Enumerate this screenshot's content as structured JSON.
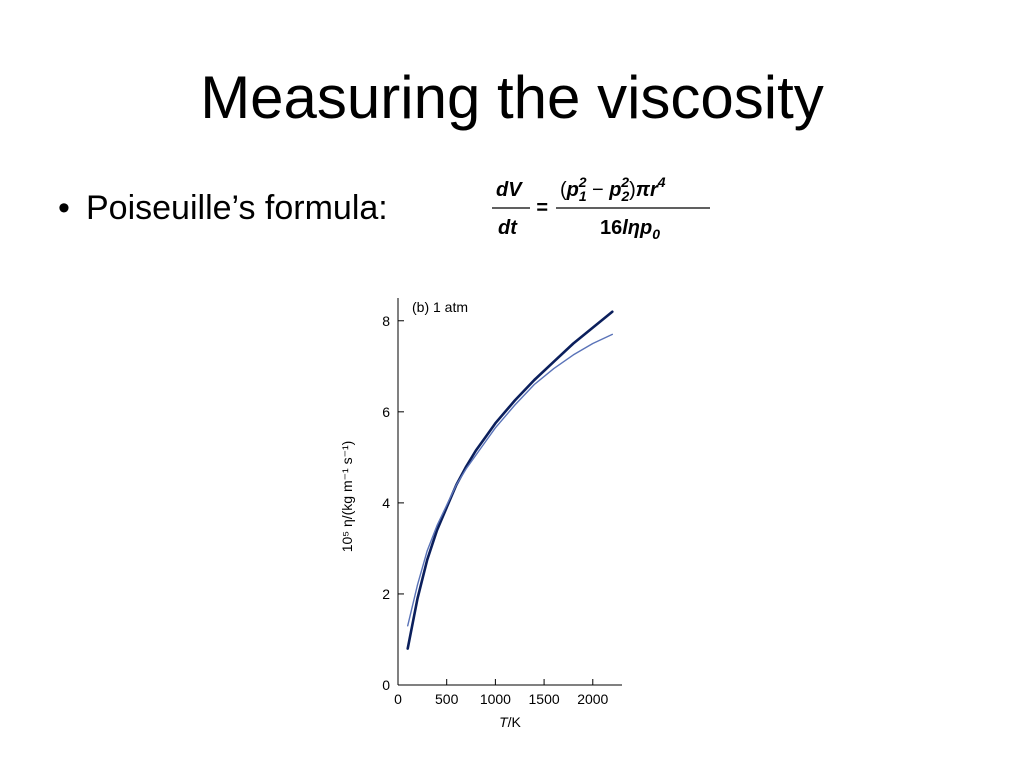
{
  "slide": {
    "title": "Measuring the viscosity",
    "bullet_symbol": "•",
    "bullet_text": "Poiseuille’s formula:"
  },
  "formula": {
    "lhs_num": "dV",
    "lhs_den": "dt",
    "equals": "=",
    "rhs_num_parts": [
      "(",
      "p",
      "1",
      "2",
      " − ",
      "p",
      "2",
      "2",
      ")",
      "πr",
      "4"
    ],
    "rhs_den_parts": [
      "16",
      "lηp",
      "0"
    ]
  },
  "chart_data": {
    "type": "line",
    "panel_label": "(b) 1 atm",
    "xlabel": "T/K",
    "ylabel": "10⁵ η/(kg m⁻¹ s⁻¹)",
    "xlim": [
      0,
      2300
    ],
    "ylim": [
      0,
      8.5
    ],
    "x_ticks": [
      0,
      500,
      1000,
      1500,
      2000
    ],
    "y_ticks": [
      0,
      2,
      4,
      6,
      8
    ],
    "grid": false,
    "colors": {
      "dark_curve": "#0b1f5c",
      "light_curve": "#5a73b8",
      "axis": "#000000"
    },
    "series": [
      {
        "x": [
          100,
          200,
          300,
          400,
          500,
          600,
          700,
          800,
          900,
          1000,
          1200,
          1400,
          1600,
          1800,
          2000,
          2200
        ],
        "values": [
          0.8,
          1.9,
          2.75,
          3.4,
          3.9,
          4.4,
          4.8,
          5.15,
          5.45,
          5.75,
          6.25,
          6.7,
          7.1,
          7.5,
          7.85,
          8.2
        ]
      },
      {
        "x": [
          100,
          200,
          300,
          400,
          500,
          600,
          700,
          800,
          900,
          1000,
          1200,
          1400,
          1600,
          1800,
          2000,
          2200
        ],
        "values": [
          1.3,
          2.2,
          2.95,
          3.5,
          3.95,
          4.4,
          4.75,
          5.05,
          5.35,
          5.65,
          6.15,
          6.6,
          6.95,
          7.25,
          7.5,
          7.7
        ]
      }
    ]
  }
}
